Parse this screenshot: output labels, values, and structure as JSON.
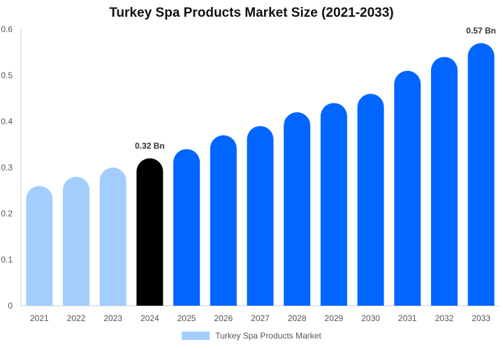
{
  "chart_data": {
    "type": "bar",
    "title": "Turkey Spa Products Market Size (2021-2033)",
    "xlabel": "",
    "ylabel": "",
    "categories": [
      "2021",
      "2022",
      "2023",
      "2024",
      "2025",
      "2026",
      "2027",
      "2028",
      "2029",
      "2030",
      "2031",
      "2032",
      "2033"
    ],
    "series": [
      {
        "name": "Turkey Spa Products Market",
        "values": [
          0.26,
          0.28,
          0.3,
          0.32,
          0.34,
          0.37,
          0.39,
          0.42,
          0.44,
          0.46,
          0.51,
          0.54,
          0.57
        ]
      }
    ],
    "ylim": [
      0,
      0.6
    ],
    "yticks": [
      "0",
      "0.1",
      "0.2",
      "0.3",
      "0.4",
      "0.5",
      "0.6"
    ],
    "grid": false,
    "legend_position": "bottom",
    "data_labels": [
      {
        "category": "2024",
        "text": "0.32 Bn"
      },
      {
        "category": "2033",
        "text": "0.57 Bn"
      }
    ],
    "colors": {
      "historical": "#a3cdfd",
      "current": "#000000",
      "forecast": "#0066ff",
      "legend": "#a3cdfd",
      "axis": "#cccccc"
    },
    "bar_color_groups": [
      "historical",
      "historical",
      "historical",
      "current",
      "forecast",
      "forecast",
      "forecast",
      "forecast",
      "forecast",
      "forecast",
      "forecast",
      "forecast",
      "forecast"
    ]
  }
}
